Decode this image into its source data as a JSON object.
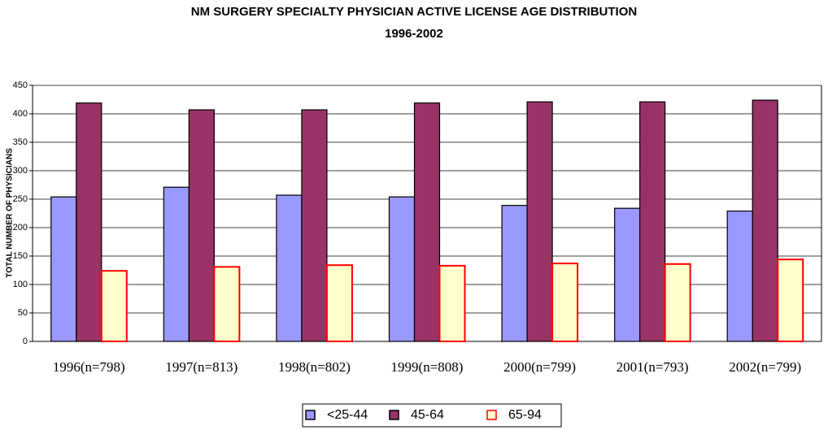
{
  "chart_data": {
    "type": "bar",
    "title": [
      "NM SURGERY SPECIALTY PHYSICIAN ACTIVE LICENSE  AGE DISTRIBUTION",
      "1996-2002"
    ],
    "y_label": "TOTAL NUMBER OF PHYSICIANS",
    "categories": [
      "1996(n=798)",
      "1997(n=813)",
      "1998(n=802)",
      "1999(n=808)",
      "2000(n=799)",
      "2001(n=793)",
      "2002(n=799)"
    ],
    "series": [
      {
        "name": "<25-44",
        "color": "#9999ff",
        "edge": "#000000",
        "values": [
          254,
          271,
          257,
          254,
          239,
          234,
          229
        ]
      },
      {
        "name": "45-64",
        "color": "#993366",
        "edge": "#000000",
        "values": [
          419,
          407,
          407,
          419,
          421,
          421,
          424
        ]
      },
      {
        "name": "65-94",
        "color": "#ffffcc",
        "edge": "#ff0000",
        "values": [
          124,
          131,
          134,
          133,
          137,
          136,
          144
        ]
      }
    ],
    "ylim": [
      0,
      450
    ],
    "yticks": [
      0,
      50,
      100,
      150,
      200,
      250,
      300,
      350,
      400,
      450
    ],
    "grid": true
  }
}
